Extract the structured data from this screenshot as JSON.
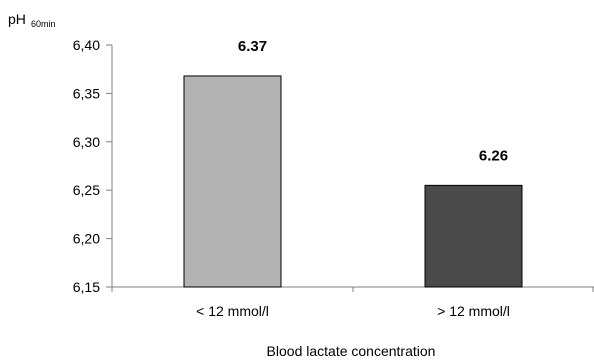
{
  "chart_data": {
    "type": "bar",
    "categories": [
      "< 12 mmol/l",
      "> 12 mmol/l"
    ],
    "values": [
      6.37,
      6.26
    ],
    "data_labels": [
      "6.37",
      "6.26"
    ],
    "bar_heights": [
      6.368,
      6.255
    ],
    "ylim": [
      6.15,
      6.4
    ],
    "yticks": [
      6.15,
      6.2,
      6.25,
      6.3,
      6.35,
      6.4
    ],
    "ytick_labels": [
      "6,15",
      "6,20",
      "6,25",
      "6,30",
      "6,35",
      "6,40"
    ],
    "ylabel": "pH",
    "ylabel_sub": "60min",
    "xlabel": "Blood  lactate concentration",
    "bar_colors": [
      "#b3b3b3",
      "#4a4a4a"
    ],
    "grid": false,
    "legend": false
  }
}
